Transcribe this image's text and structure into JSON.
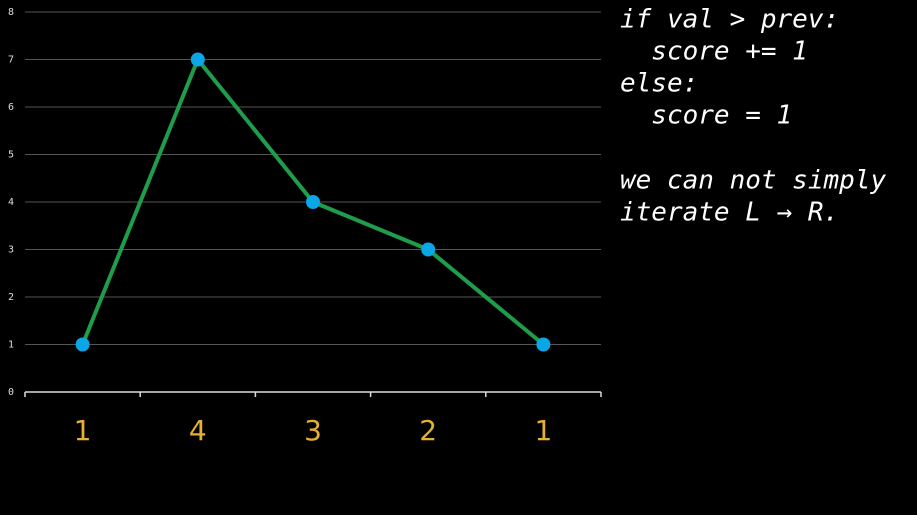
{
  "chart_data": {
    "type": "line",
    "categories": [
      "1",
      "4",
      "3",
      "2",
      "1"
    ],
    "series": [
      {
        "values": [
          1,
          7,
          4,
          3,
          1
        ],
        "color": "#1e9e4a",
        "marker_color": "#0aa6e6"
      }
    ],
    "ylim": [
      0,
      8
    ],
    "yticks": [
      0,
      1,
      2,
      3,
      4,
      5,
      6,
      7,
      8
    ],
    "grid": true,
    "annotation": [
      "if val > prev:",
      "  score += 1",
      "else:",
      "  score = 1"
    ],
    "note": [
      "we can not simply",
      "iterate L → R."
    ]
  }
}
